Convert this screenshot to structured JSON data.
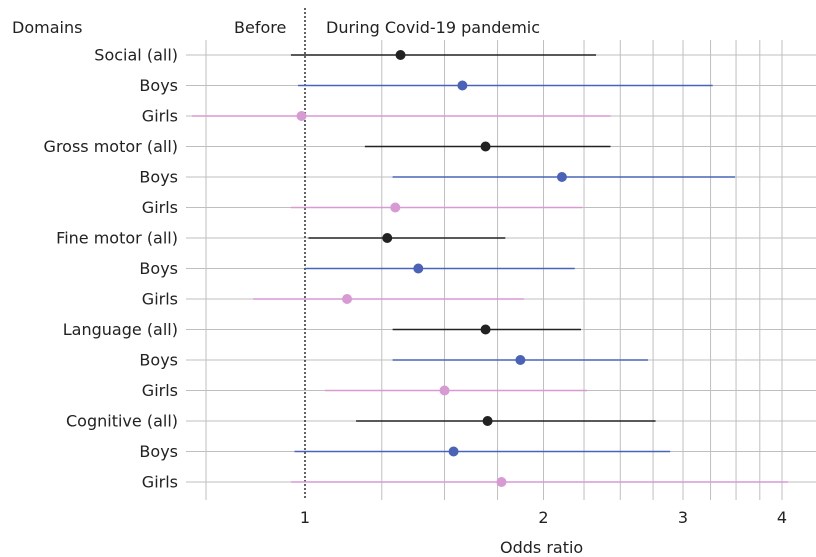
{
  "headers": {
    "domains": "Domains",
    "before": "Before",
    "during": "During Covid-19 pandemic"
  },
  "chart_data": {
    "type": "forest",
    "xlabel": "Odds ratio",
    "x_scale": "log",
    "xlim": [
      0.6,
      4.25
    ],
    "x_ticks": [
      1,
      2,
      3,
      4
    ],
    "reference_line": 1,
    "grid": true,
    "colors": {
      "all": "#222222",
      "boys": "#4a63b8",
      "girls": "#d89ad3"
    },
    "rows": [
      {
        "label": "Social (all)",
        "group": "all",
        "estimate": 1.32,
        "lower": 0.96,
        "upper": 2.33
      },
      {
        "label": "Boys",
        "group": "boys",
        "estimate": 1.58,
        "lower": 0.98,
        "upper": 3.27
      },
      {
        "label": "Girls",
        "group": "girls",
        "estimate": 0.99,
        "lower": 0.72,
        "upper": 2.43
      },
      {
        "label": "Gross motor (all)",
        "group": "all",
        "estimate": 1.69,
        "lower": 1.19,
        "upper": 2.43
      },
      {
        "label": "Boys",
        "group": "boys",
        "estimate": 2.11,
        "lower": 1.29,
        "upper": 3.49
      },
      {
        "label": "Girls",
        "group": "girls",
        "estimate": 1.3,
        "lower": 0.96,
        "upper": 2.24
      },
      {
        "label": "Fine motor (all)",
        "group": "all",
        "estimate": 1.27,
        "lower": 1.01,
        "upper": 1.79
      },
      {
        "label": "Boys",
        "group": "boys",
        "estimate": 1.39,
        "lower": 1.0,
        "upper": 2.19
      },
      {
        "label": "Girls",
        "group": "girls",
        "estimate": 1.13,
        "lower": 0.86,
        "upper": 1.89
      },
      {
        "label": "Language (all)",
        "group": "all",
        "estimate": 1.69,
        "lower": 1.29,
        "upper": 2.23
      },
      {
        "label": "Boys",
        "group": "boys",
        "estimate": 1.87,
        "lower": 1.29,
        "upper": 2.71
      },
      {
        "label": "Girls",
        "group": "girls",
        "estimate": 1.5,
        "lower": 1.06,
        "upper": 2.27
      },
      {
        "label": "Cognitive (all)",
        "group": "all",
        "estimate": 1.7,
        "lower": 1.16,
        "upper": 2.77
      },
      {
        "label": "Boys",
        "group": "boys",
        "estimate": 1.54,
        "lower": 0.97,
        "upper": 2.89
      },
      {
        "label": "Girls",
        "group": "girls",
        "estimate": 1.77,
        "lower": 0.96,
        "upper": 4.07
      }
    ]
  }
}
